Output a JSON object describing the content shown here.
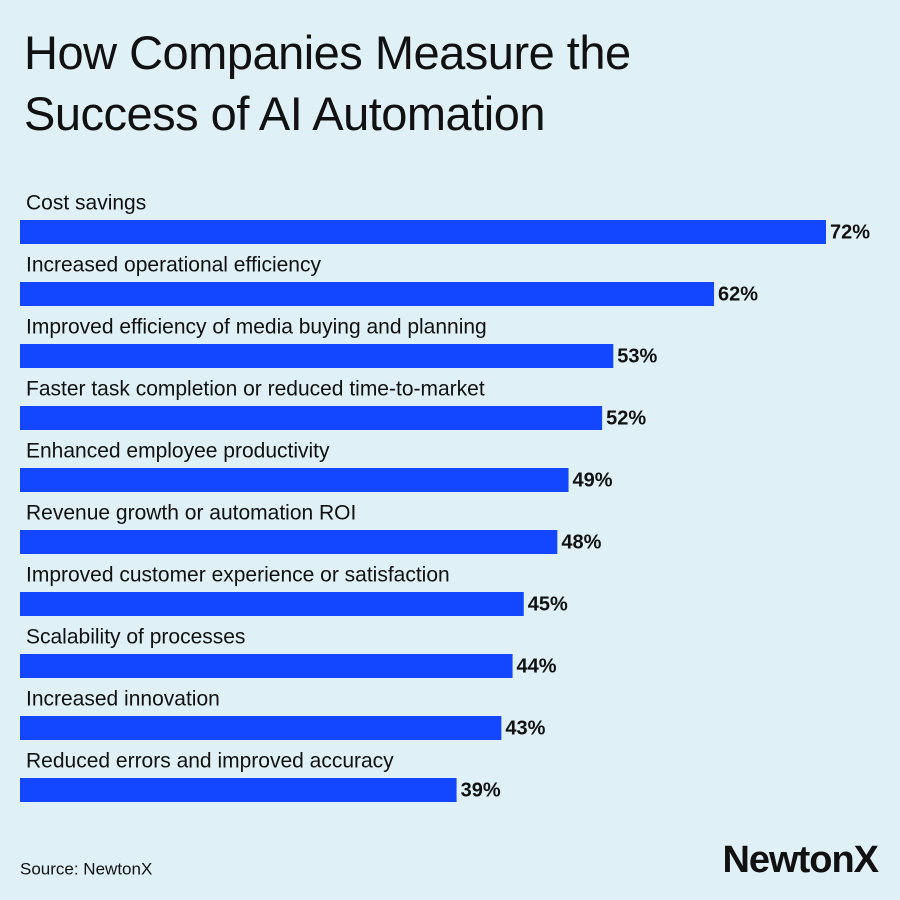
{
  "chart_data": {
    "type": "bar",
    "orientation": "horizontal",
    "title": "How Companies Measure the Success of AI Automation",
    "categories": [
      "Cost savings",
      "Increased operational efficiency",
      "Improved efficiency of media buying and planning",
      "Faster task completion or reduced time-to-market",
      "Enhanced employee productivity",
      "Revenue growth or automation ROI",
      "Improved customer experience or satisfaction",
      "Scalability of processes",
      "Increased innovation",
      "Reduced errors and improved accuracy"
    ],
    "values": [
      72,
      62,
      53,
      52,
      49,
      48,
      45,
      44,
      43,
      39
    ],
    "value_labels": [
      "72%",
      "62%",
      "53%",
      "52%",
      "49%",
      "48%",
      "45%",
      "44%",
      "43%",
      "39%"
    ],
    "color": "#1246ff",
    "source": "Source: NewtonX",
    "logo": "NewtonX"
  }
}
